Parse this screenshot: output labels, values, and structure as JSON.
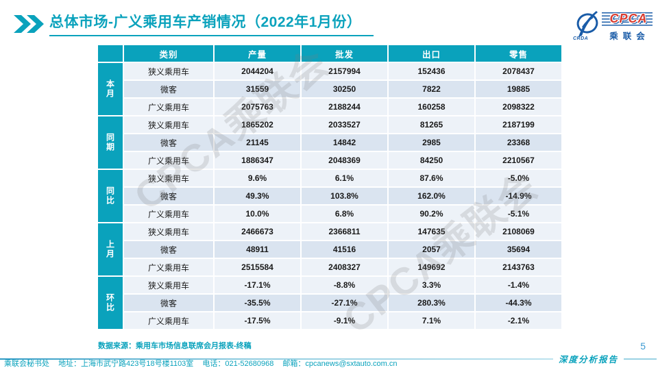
{
  "title": "总体市场-广义乘用车产销情况（2022年1月份）",
  "logo": {
    "cpca": "CPCA",
    "sub": "乘联会",
    "crda": "CRDA"
  },
  "watermark_text": "CPCA乘联会",
  "table": {
    "headers": [
      "类别",
      "产量",
      "批发",
      "出口",
      "零售"
    ],
    "groups": [
      {
        "label": "本月",
        "rows": [
          {
            "category": "狭义乘用车",
            "values": [
              "2044204",
              "2157994",
              "152436",
              "2078437"
            ]
          },
          {
            "category": "微客",
            "values": [
              "31559",
              "30250",
              "7822",
              "19885"
            ]
          },
          {
            "category": "广义乘用车",
            "values": [
              "2075763",
              "2188244",
              "160258",
              "2098322"
            ]
          }
        ]
      },
      {
        "label": "同期",
        "rows": [
          {
            "category": "狭义乘用车",
            "values": [
              "1865202",
              "2033527",
              "81265",
              "2187199"
            ]
          },
          {
            "category": "微客",
            "values": [
              "21145",
              "14842",
              "2985",
              "23368"
            ]
          },
          {
            "category": "广义乘用车",
            "values": [
              "1886347",
              "2048369",
              "84250",
              "2210567"
            ]
          }
        ]
      },
      {
        "label": "同比",
        "rows": [
          {
            "category": "狭义乘用车",
            "values": [
              "9.6%",
              "6.1%",
              "87.6%",
              "-5.0%"
            ]
          },
          {
            "category": "微客",
            "values": [
              "49.3%",
              "103.8%",
              "162.0%",
              "-14.9%"
            ]
          },
          {
            "category": "广义乘用车",
            "values": [
              "10.0%",
              "6.8%",
              "90.2%",
              "-5.1%"
            ]
          }
        ]
      },
      {
        "label": "上月",
        "rows": [
          {
            "category": "狭义乘用车",
            "values": [
              "2466673",
              "2366811",
              "147635",
              "2108069"
            ]
          },
          {
            "category": "微客",
            "values": [
              "48911",
              "41516",
              "2057",
              "35694"
            ]
          },
          {
            "category": "广义乘用车",
            "values": [
              "2515584",
              "2408327",
              "149692",
              "2143763"
            ]
          }
        ]
      },
      {
        "label": "环比",
        "rows": [
          {
            "category": "狭义乘用车",
            "values": [
              "-17.1%",
              "-8.8%",
              "3.3%",
              "-1.4%"
            ]
          },
          {
            "category": "微客",
            "values": [
              "-35.5%",
              "-27.1%",
              "280.3%",
              "-44.3%"
            ]
          },
          {
            "category": "广义乘用车",
            "values": [
              "-17.5%",
              "-9.1%",
              "7.1%",
              "-2.1%"
            ]
          }
        ]
      }
    ]
  },
  "source_note": "数据来源：乘用车市场信息联席会月报表-终稿",
  "footer": {
    "secretariat": "乘联会秘书处",
    "address": "地址：上海市武宁路423号18号楼1103室",
    "phone": "电话：021-52680968",
    "email": "邮箱：cpcanews@sxtauto.com.cn",
    "report_type": "深度分析报告",
    "page_number": "5"
  },
  "colors": {
    "teal": "#0AA2BC",
    "row_light": "#EDF2F8",
    "row_dark": "#DAE4F0",
    "logo_blue": "#1A5CA8",
    "logo_red": "#D93C30",
    "page_number_blue": "#3B9AD2"
  }
}
